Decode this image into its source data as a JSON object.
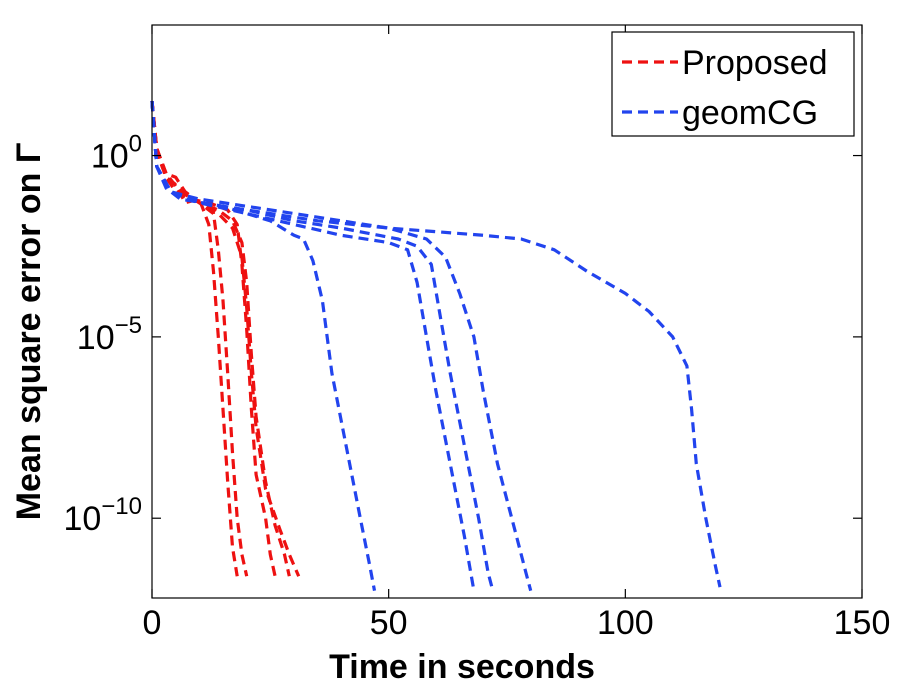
{
  "chart_data": {
    "type": "line",
    "xlabel": "Time in seconds",
    "ylabel": "Mean square error on Γ",
    "xlim": [
      0,
      150
    ],
    "ylim_log10": [
      -12.2,
      3.6
    ],
    "yscale": "log",
    "grid": false,
    "legend_position": "top-right",
    "x_ticks": [
      {
        "value": 0,
        "label": "0"
      },
      {
        "value": 50,
        "label": "50"
      },
      {
        "value": 100,
        "label": "100"
      },
      {
        "value": 150,
        "label": "150"
      }
    ],
    "y_ticks": [
      {
        "log10": 0,
        "base": "10",
        "exp": "0"
      },
      {
        "log10": -5,
        "base": "10",
        "exp": "−5"
      },
      {
        "log10": -10,
        "base": "10",
        "exp": "−10"
      }
    ],
    "legend": [
      {
        "label": "Proposed",
        "color": "#ee1111"
      },
      {
        "label": "geomCG",
        "color": "#2244ee"
      }
    ],
    "series": [
      {
        "group": "Proposed",
        "color": "#ee1111",
        "points": [
          [
            0,
            1.5
          ],
          [
            1,
            0.1
          ],
          [
            3,
            -0.6
          ],
          [
            5,
            -0.8
          ],
          [
            7,
            -1.3
          ],
          [
            10,
            -1.2
          ],
          [
            12,
            -1.9
          ],
          [
            13,
            -3.2
          ],
          [
            14,
            -5.0
          ],
          [
            15,
            -7.0
          ],
          [
            16,
            -9.0
          ],
          [
            17,
            -10.8
          ],
          [
            18,
            -11.6
          ]
        ]
      },
      {
        "group": "Proposed",
        "color": "#ee1111",
        "points": [
          [
            0,
            1.5
          ],
          [
            1,
            0.2
          ],
          [
            3,
            -0.5
          ],
          [
            5,
            -0.6
          ],
          [
            7,
            -1.0
          ],
          [
            10,
            -1.3
          ],
          [
            13,
            -1.6
          ],
          [
            14,
            -2.6
          ],
          [
            15,
            -4.0
          ],
          [
            16,
            -6.0
          ],
          [
            17,
            -8.2
          ],
          [
            18,
            -10.0
          ],
          [
            19,
            -11.0
          ],
          [
            20,
            -11.6
          ]
        ]
      },
      {
        "group": "Proposed",
        "color": "#ee1111",
        "points": [
          [
            0,
            1.5
          ],
          [
            1,
            0.1
          ],
          [
            3,
            -0.6
          ],
          [
            5,
            -1.0
          ],
          [
            8,
            -1.2
          ],
          [
            12,
            -1.3
          ],
          [
            16,
            -1.5
          ],
          [
            18,
            -1.9
          ],
          [
            19,
            -3.0
          ],
          [
            20,
            -4.8
          ],
          [
            21,
            -7.0
          ],
          [
            22,
            -8.8
          ],
          [
            24,
            -10.0
          ],
          [
            25,
            -11.0
          ],
          [
            26,
            -11.6
          ]
        ]
      },
      {
        "group": "Proposed",
        "color": "#ee1111",
        "points": [
          [
            0,
            1.5
          ],
          [
            1,
            0.2
          ],
          [
            3,
            -0.5
          ],
          [
            6,
            -1.0
          ],
          [
            10,
            -1.3
          ],
          [
            14,
            -1.5
          ],
          [
            17,
            -1.8
          ],
          [
            19,
            -2.4
          ],
          [
            20,
            -3.5
          ],
          [
            21,
            -5.5
          ],
          [
            22,
            -7.2
          ],
          [
            24,
            -9.0
          ],
          [
            26,
            -10.2
          ],
          [
            28,
            -11.0
          ],
          [
            29,
            -11.6
          ]
        ]
      },
      {
        "group": "Proposed",
        "color": "#ee1111",
        "points": [
          [
            0,
            1.5
          ],
          [
            1,
            0.2
          ],
          [
            3,
            -0.6
          ],
          [
            6,
            -0.9
          ],
          [
            10,
            -1.3
          ],
          [
            14,
            -1.6
          ],
          [
            17,
            -2.0
          ],
          [
            19,
            -2.8
          ],
          [
            20,
            -4.2
          ],
          [
            21,
            -6.0
          ],
          [
            22,
            -7.5
          ],
          [
            24,
            -9.2
          ],
          [
            27,
            -10.3
          ],
          [
            29,
            -11.0
          ],
          [
            31,
            -11.6
          ]
        ]
      },
      {
        "group": "geomCG",
        "color": "#2244ee",
        "points": [
          [
            0,
            1.5
          ],
          [
            1,
            -0.3
          ],
          [
            3,
            -0.9
          ],
          [
            6,
            -1.2
          ],
          [
            15,
            -1.4
          ],
          [
            25,
            -1.8
          ],
          [
            30,
            -2.2
          ],
          [
            32,
            -2.3
          ],
          [
            34,
            -2.9
          ],
          [
            36,
            -4.0
          ],
          [
            38,
            -6.0
          ],
          [
            41,
            -8.0
          ],
          [
            44,
            -10.0
          ],
          [
            46,
            -11.3
          ],
          [
            47,
            -12.0
          ]
        ]
      },
      {
        "group": "geomCG",
        "color": "#2244ee",
        "points": [
          [
            0,
            1.5
          ],
          [
            1,
            -0.3
          ],
          [
            4,
            -1.0
          ],
          [
            10,
            -1.3
          ],
          [
            20,
            -1.6
          ],
          [
            30,
            -1.9
          ],
          [
            40,
            -2.2
          ],
          [
            50,
            -2.4
          ],
          [
            54,
            -2.6
          ],
          [
            56,
            -3.5
          ],
          [
            58,
            -5.0
          ],
          [
            60,
            -6.5
          ],
          [
            63,
            -8.5
          ],
          [
            66,
            -10.5
          ],
          [
            68,
            -12.0
          ]
        ]
      },
      {
        "group": "geomCG",
        "color": "#2244ee",
        "points": [
          [
            0,
            1.5
          ],
          [
            1,
            -0.3
          ],
          [
            4,
            -1.0
          ],
          [
            10,
            -1.3
          ],
          [
            20,
            -1.5
          ],
          [
            30,
            -1.8
          ],
          [
            40,
            -2.0
          ],
          [
            52,
            -2.3
          ],
          [
            56,
            -2.5
          ],
          [
            59,
            -3.0
          ],
          [
            61,
            -4.5
          ],
          [
            63,
            -6.0
          ],
          [
            66,
            -8.0
          ],
          [
            69,
            -10.0
          ],
          [
            71,
            -11.5
          ],
          [
            72,
            -12.0
          ]
        ]
      },
      {
        "group": "geomCG",
        "color": "#2244ee",
        "points": [
          [
            0,
            1.5
          ],
          [
            1,
            -0.3
          ],
          [
            4,
            -1.0
          ],
          [
            10,
            -1.3
          ],
          [
            20,
            -1.5
          ],
          [
            35,
            -1.8
          ],
          [
            50,
            -2.0
          ],
          [
            58,
            -2.3
          ],
          [
            62,
            -2.8
          ],
          [
            65,
            -3.8
          ],
          [
            68,
            -5.0
          ],
          [
            70,
            -6.5
          ],
          [
            73,
            -8.5
          ],
          [
            77,
            -10.5
          ],
          [
            79,
            -11.5
          ],
          [
            80,
            -12.0
          ]
        ]
      },
      {
        "group": "geomCG",
        "color": "#2244ee",
        "points": [
          [
            0,
            1.5
          ],
          [
            1,
            -0.3
          ],
          [
            4,
            -1.0
          ],
          [
            10,
            -1.2
          ],
          [
            20,
            -1.4
          ],
          [
            35,
            -1.7
          ],
          [
            50,
            -2.0
          ],
          [
            60,
            -2.1
          ],
          [
            70,
            -2.2
          ],
          [
            78,
            -2.3
          ],
          [
            85,
            -2.6
          ],
          [
            92,
            -3.2
          ],
          [
            100,
            -3.8
          ],
          [
            105,
            -4.3
          ],
          [
            110,
            -5.0
          ],
          [
            113,
            -5.8
          ],
          [
            114,
            -7.0
          ],
          [
            115,
            -8.5
          ],
          [
            117,
            -10.0
          ],
          [
            119,
            -11.3
          ],
          [
            120,
            -11.9
          ]
        ]
      }
    ]
  }
}
